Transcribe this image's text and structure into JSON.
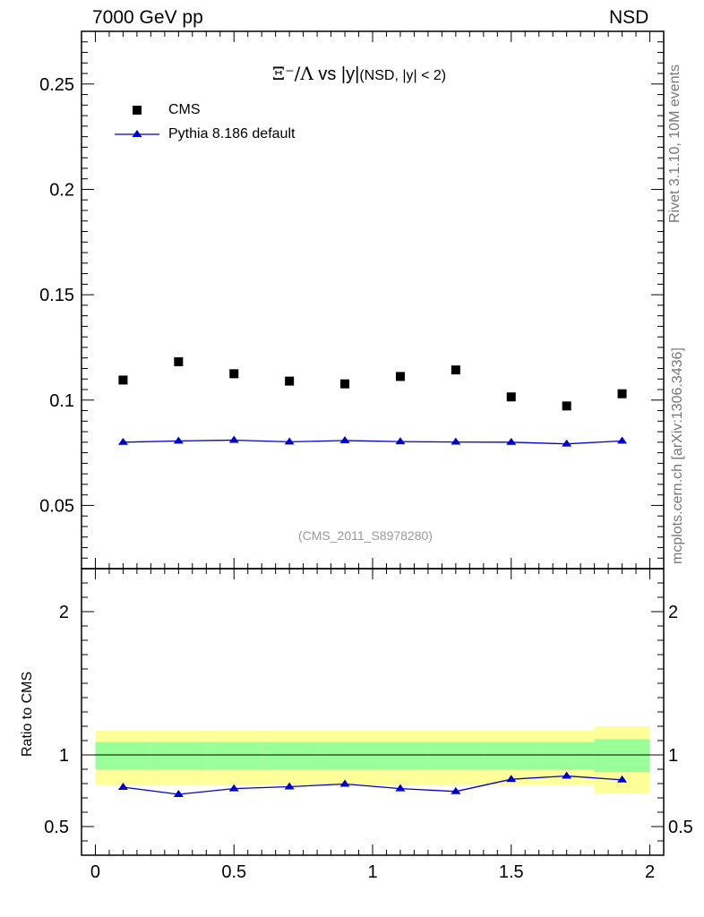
{
  "header": {
    "left": "7000 GeV pp",
    "right": "NSD"
  },
  "side_labels": {
    "top": "Rivet 3.1.10,  10M events",
    "bottom": "mcplots.cern.ch [arXiv:1306.3436]"
  },
  "colors": {
    "data": "#000000",
    "mc": "#0000cc",
    "band_inner": "#99ff99",
    "band_outer": "#ffff99",
    "watermark": "#999999"
  },
  "chart_data": [
    {
      "type": "scatter",
      "title_symbol": "Ξ⁻/Λ",
      "title_text": "vs |y|",
      "title_cut": "(NSD, |y| < 2)",
      "watermark": "(CMS_2011_S8978280)",
      "x": [
        0.1,
        0.3,
        0.5,
        0.7,
        0.9,
        1.1,
        1.3,
        1.5,
        1.7,
        1.9
      ],
      "xlim": [
        -0.05,
        2.05
      ],
      "ylim": [
        0.02,
        0.275
      ],
      "yticks": [
        0.05,
        0.1,
        0.15,
        0.2,
        0.25
      ],
      "ytick_labels": [
        "0.05",
        "0.1",
        "0.15",
        "0.2",
        "0.25"
      ],
      "series": [
        {
          "name": "CMS",
          "style": "markers",
          "values": [
            0.1095,
            0.1182,
            0.1125,
            0.109,
            0.1077,
            0.1112,
            0.1143,
            0.1015,
            0.0972,
            0.103
          ]
        },
        {
          "name": "Pythia 8.186 default",
          "style": "line-triangles",
          "values": [
            0.08,
            0.0806,
            0.081,
            0.0802,
            0.0808,
            0.0803,
            0.0801,
            0.08,
            0.0792,
            0.0806
          ]
        }
      ],
      "legend": [
        "CMS",
        "Pythia 8.186 default"
      ]
    },
    {
      "type": "line",
      "ylabel": "Ratio to CMS",
      "xlim": [
        -0.05,
        2.05
      ],
      "ylim": [
        0.3,
        2.3
      ],
      "yticks": [
        0.5,
        1,
        2
      ],
      "ytick_labels": [
        "0.5",
        "1",
        "2"
      ],
      "xticks": [
        0,
        0.5,
        1,
        1.5,
        2
      ],
      "xtick_labels": [
        "0",
        "0.5",
        "1",
        "1.5",
        "2"
      ],
      "x_edges": [
        0,
        0.2,
        0.4,
        0.6,
        0.8,
        1.0,
        1.2,
        1.4,
        1.6,
        1.8,
        2.0
      ],
      "band_inner": {
        "lo": [
          0.9,
          0.9,
          0.9,
          0.9,
          0.9,
          0.9,
          0.9,
          0.9,
          0.9,
          0.88
        ],
        "hi": [
          1.09,
          1.09,
          1.09,
          1.09,
          1.09,
          1.09,
          1.09,
          1.09,
          1.09,
          1.11
        ]
      },
      "band_outer": {
        "lo": [
          0.79,
          0.79,
          0.79,
          0.79,
          0.79,
          0.79,
          0.79,
          0.79,
          0.79,
          0.73
        ],
        "hi": [
          1.17,
          1.17,
          1.17,
          1.17,
          1.17,
          1.17,
          1.17,
          1.17,
          1.17,
          1.2
        ]
      },
      "series": [
        {
          "name": "Pythia 8.186 default",
          "x": [
            0.1,
            0.3,
            0.5,
            0.7,
            0.9,
            1.1,
            1.3,
            1.5,
            1.7,
            1.9
          ],
          "values": [
            0.775,
            0.725,
            0.765,
            0.778,
            0.797,
            0.765,
            0.745,
            0.83,
            0.853,
            0.826
          ]
        }
      ]
    }
  ]
}
